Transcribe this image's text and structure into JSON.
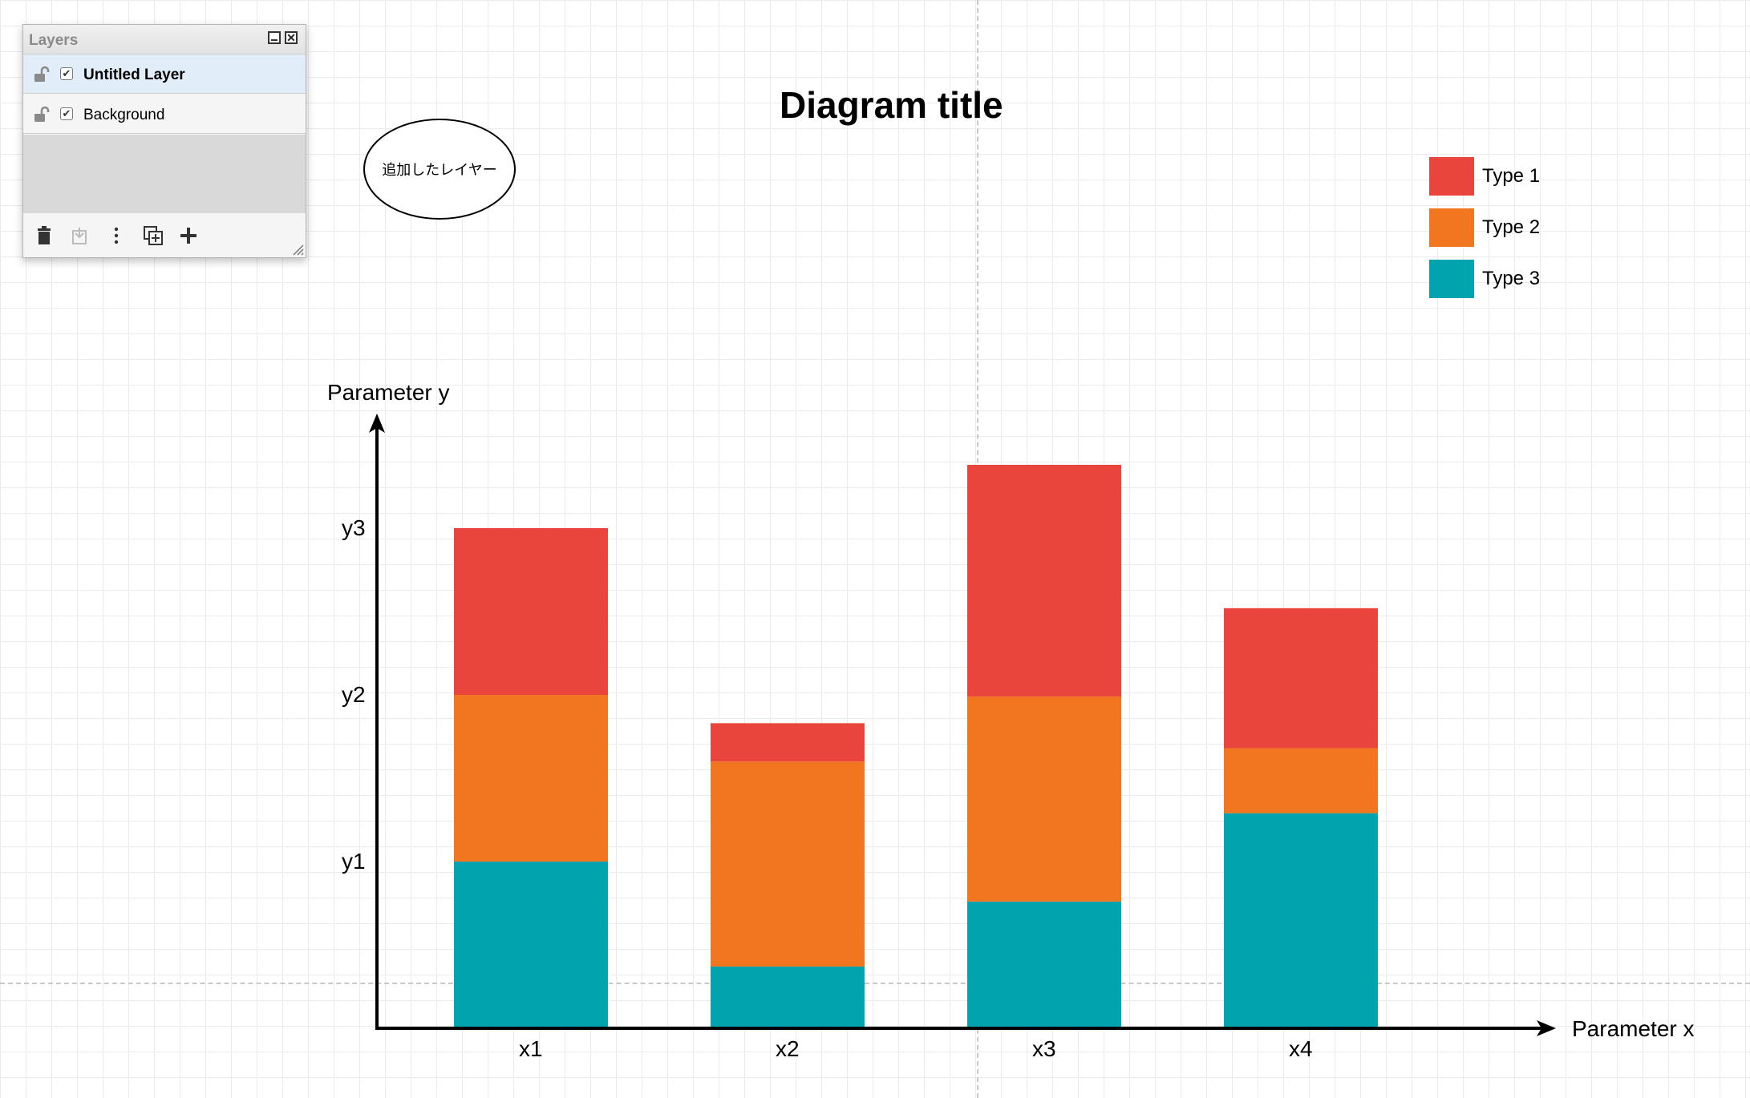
{
  "layers_panel": {
    "title": "Layers",
    "close_symbol": "✕",
    "layers": [
      {
        "name": "Untitled Layer",
        "visible": true,
        "selected": true
      },
      {
        "name": "Background",
        "visible": true,
        "selected": false
      }
    ],
    "toolbar_icons": [
      "trash-icon",
      "move-to-layer-icon",
      "more-vertical-icon",
      "duplicate-icon",
      "plus-icon"
    ]
  },
  "shapes": {
    "ellipse_label": "追加したレイヤー"
  },
  "chart_data": {
    "type": "bar",
    "stacked": true,
    "title": "Diagram title",
    "xlabel": "Parameter x",
    "ylabel": "Parameter y",
    "categories": [
      "x1",
      "x2",
      "x3",
      "x4"
    ],
    "y_ticks": [
      {
        "label": "y1",
        "value": 1
      },
      {
        "label": "y2",
        "value": 2
      },
      {
        "label": "y3",
        "value": 3
      }
    ],
    "ylim": [
      0,
      3.7
    ],
    "series": [
      {
        "name": "Type 3",
        "color": "#00A3AE",
        "values": [
          1.0,
          0.37,
          0.76,
          1.29
        ]
      },
      {
        "name": "Type 2",
        "color": "#F2761F",
        "values": [
          1.0,
          1.23,
          1.23,
          0.39
        ]
      },
      {
        "name": "Type 1",
        "color": "#E9453C",
        "values": [
          1.0,
          0.23,
          1.39,
          0.84
        ]
      }
    ],
    "legend": {
      "placement": "top-right",
      "entries": [
        "Type 1",
        "Type 2",
        "Type 3"
      ]
    },
    "grid": true
  }
}
